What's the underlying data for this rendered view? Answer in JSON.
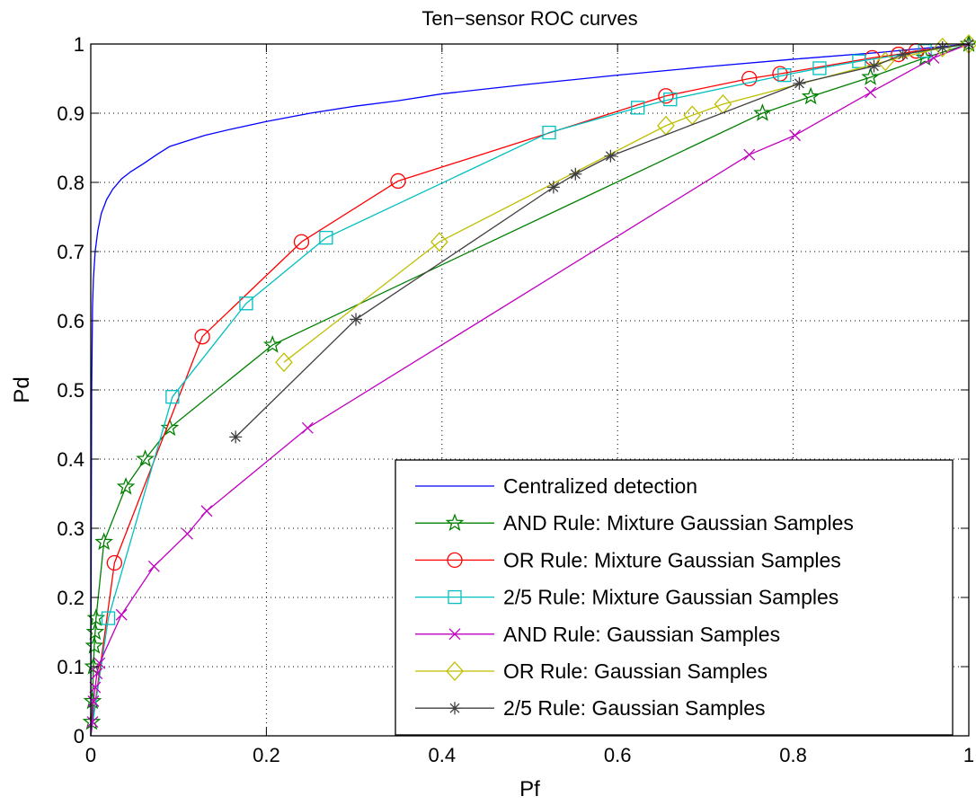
{
  "chart_data": {
    "type": "line",
    "title": "Ten−sensor ROC curves",
    "xlabel": "Pf",
    "ylabel": "Pd",
    "xlim": [
      0,
      1
    ],
    "ylim": [
      0,
      1
    ],
    "xticks": [
      0,
      0.2,
      0.4,
      0.6,
      0.8,
      1
    ],
    "xtick_labels": [
      "0",
      "0.2",
      "0.4",
      "0.6",
      "0.8",
      "1"
    ],
    "yticks": [
      0,
      0.1,
      0.2,
      0.3,
      0.4,
      0.5,
      0.6,
      0.7,
      0.8,
      0.9,
      1
    ],
    "ytick_labels": [
      "0",
      "0.1",
      "0.2",
      "0.3",
      "0.4",
      "0.5",
      "0.6",
      "0.7",
      "0.8",
      "0.9",
      "1"
    ],
    "grid": true,
    "legend_position": "bottom-right",
    "series": [
      {
        "name": "Centralized detection",
        "color": "#0000ff",
        "marker": "none",
        "points": [
          [
            0,
            0
          ],
          [
            0.001,
            0.5
          ],
          [
            0.002,
            0.62
          ],
          [
            0.003,
            0.66
          ],
          [
            0.005,
            0.7
          ],
          [
            0.008,
            0.73
          ],
          [
            0.012,
            0.755
          ],
          [
            0.018,
            0.775
          ],
          [
            0.025,
            0.79
          ],
          [
            0.035,
            0.805
          ],
          [
            0.045,
            0.815
          ],
          [
            0.06,
            0.827
          ],
          [
            0.075,
            0.84
          ],
          [
            0.09,
            0.852
          ],
          [
            0.11,
            0.86
          ],
          [
            0.13,
            0.868
          ],
          [
            0.16,
            0.877
          ],
          [
            0.2,
            0.888
          ],
          [
            0.25,
            0.9
          ],
          [
            0.3,
            0.91
          ],
          [
            0.35,
            0.918
          ],
          [
            0.4,
            0.928
          ],
          [
            0.5,
            0.942
          ],
          [
            0.6,
            0.955
          ],
          [
            0.7,
            0.967
          ],
          [
            0.8,
            0.978
          ],
          [
            0.9,
            0.988
          ],
          [
            1,
            1
          ]
        ]
      },
      {
        "name": "AND Rule: Mixture Gaussian Samples",
        "color": "#008000",
        "marker": "star5",
        "points": [
          [
            0,
            0
          ],
          [
            0.001,
            0.02
          ],
          [
            0.002,
            0.05
          ],
          [
            0.003,
            0.1
          ],
          [
            0.004,
            0.13
          ],
          [
            0.005,
            0.15
          ],
          [
            0.006,
            0.17
          ],
          [
            0.015,
            0.28
          ],
          [
            0.04,
            0.36
          ],
          [
            0.062,
            0.4
          ],
          [
            0.09,
            0.445
          ],
          [
            0.207,
            0.565
          ],
          [
            0.765,
            0.9
          ],
          [
            0.82,
            0.924
          ],
          [
            0.888,
            0.952
          ],
          [
            0.95,
            0.98
          ],
          [
            1,
            1
          ]
        ],
        "marker_points": [
          [
            0.001,
            0.02
          ],
          [
            0.002,
            0.05
          ],
          [
            0.003,
            0.1
          ],
          [
            0.004,
            0.13
          ],
          [
            0.005,
            0.15
          ],
          [
            0.006,
            0.17
          ],
          [
            0.015,
            0.28
          ],
          [
            0.04,
            0.36
          ],
          [
            0.062,
            0.4
          ],
          [
            0.09,
            0.445
          ],
          [
            0.207,
            0.565
          ],
          [
            0.765,
            0.9
          ],
          [
            0.82,
            0.924
          ],
          [
            0.888,
            0.952
          ],
          [
            0.95,
            0.98
          ],
          [
            1,
            1
          ]
        ]
      },
      {
        "name": "OR Rule: Mixture Gaussian Samples",
        "color": "#ff0000",
        "marker": "circle",
        "points": [
          [
            0,
            0
          ],
          [
            0.027,
            0.25
          ],
          [
            0.127,
            0.577
          ],
          [
            0.24,
            0.714
          ],
          [
            0.35,
            0.802
          ],
          [
            0.655,
            0.925
          ],
          [
            0.75,
            0.95
          ],
          [
            0.785,
            0.957
          ],
          [
            0.89,
            0.98
          ],
          [
            0.92,
            0.985
          ],
          [
            0.94,
            0.99
          ],
          [
            1,
            1
          ]
        ],
        "marker_points": [
          [
            0.027,
            0.25
          ],
          [
            0.127,
            0.577
          ],
          [
            0.24,
            0.714
          ],
          [
            0.35,
            0.802
          ],
          [
            0.655,
            0.925
          ],
          [
            0.75,
            0.95
          ],
          [
            0.785,
            0.957
          ],
          [
            0.89,
            0.98
          ],
          [
            0.92,
            0.985
          ],
          [
            0.94,
            0.99
          ]
        ]
      },
      {
        "name": "2/5 Rule: Mixture Gaussian Samples",
        "color": "#00bfbf",
        "marker": "square",
        "points": [
          [
            0,
            0
          ],
          [
            0.02,
            0.17
          ],
          [
            0.093,
            0.49
          ],
          [
            0.177,
            0.625
          ],
          [
            0.268,
            0.72
          ],
          [
            0.522,
            0.872
          ],
          [
            0.623,
            0.908
          ],
          [
            0.66,
            0.92
          ],
          [
            0.79,
            0.955
          ],
          [
            0.83,
            0.965
          ],
          [
            0.875,
            0.975
          ],
          [
            0.95,
            0.99
          ],
          [
            1,
            1
          ]
        ],
        "marker_points": [
          [
            0.02,
            0.17
          ],
          [
            0.093,
            0.49
          ],
          [
            0.177,
            0.625
          ],
          [
            0.268,
            0.72
          ],
          [
            0.522,
            0.872
          ],
          [
            0.623,
            0.908
          ],
          [
            0.66,
            0.92
          ],
          [
            0.79,
            0.955
          ],
          [
            0.83,
            0.965
          ],
          [
            0.875,
            0.975
          ],
          [
            0.95,
            0.99
          ]
        ]
      },
      {
        "name": "AND Rule: Gaussian Samples",
        "color": "#bf00bf",
        "marker": "x",
        "points": [
          [
            0,
            0
          ],
          [
            0.002,
            0.02
          ],
          [
            0.003,
            0.05
          ],
          [
            0.005,
            0.07
          ],
          [
            0.007,
            0.09
          ],
          [
            0.01,
            0.105
          ],
          [
            0.035,
            0.175
          ],
          [
            0.072,
            0.245
          ],
          [
            0.11,
            0.292
          ],
          [
            0.132,
            0.325
          ],
          [
            0.247,
            0.445
          ],
          [
            0.75,
            0.84
          ],
          [
            0.802,
            0.868
          ],
          [
            0.888,
            0.93
          ],
          [
            0.96,
            0.98
          ],
          [
            1,
            1
          ]
        ],
        "marker_points": [
          [
            0.002,
            0.02
          ],
          [
            0.003,
            0.05
          ],
          [
            0.005,
            0.07
          ],
          [
            0.007,
            0.09
          ],
          [
            0.01,
            0.105
          ],
          [
            0.035,
            0.175
          ],
          [
            0.072,
            0.245
          ],
          [
            0.11,
            0.292
          ],
          [
            0.132,
            0.325
          ],
          [
            0.247,
            0.445
          ],
          [
            0.75,
            0.84
          ],
          [
            0.802,
            0.868
          ],
          [
            0.888,
            0.93
          ],
          [
            0.96,
            0.98
          ]
        ]
      },
      {
        "name": "OR Rule: Gaussian Samples",
        "color": "#bfbf00",
        "marker": "diamond",
        "points": [
          [
            0.22,
            0.54
          ],
          [
            0.397,
            0.714
          ],
          [
            0.655,
            0.882
          ],
          [
            0.685,
            0.897
          ],
          [
            0.72,
            0.913
          ],
          [
            0.905,
            0.975
          ],
          [
            0.97,
            0.995
          ],
          [
            1,
            1
          ]
        ],
        "marker_points": [
          [
            0.22,
            0.54
          ],
          [
            0.397,
            0.714
          ],
          [
            0.655,
            0.882
          ],
          [
            0.685,
            0.897
          ],
          [
            0.72,
            0.913
          ],
          [
            0.905,
            0.975
          ],
          [
            0.97,
            0.995
          ],
          [
            1,
            1
          ]
        ]
      },
      {
        "name": "2/5 Rule: Gaussian Samples",
        "color": "#404040",
        "marker": "asterisk",
        "points": [
          [
            0.165,
            0.432
          ],
          [
            0.302,
            0.602
          ],
          [
            0.527,
            0.793
          ],
          [
            0.552,
            0.812
          ],
          [
            0.592,
            0.838
          ],
          [
            0.807,
            0.943
          ],
          [
            0.892,
            0.968
          ],
          [
            0.925,
            0.985
          ],
          [
            0.97,
            0.995
          ],
          [
            1,
            1
          ]
        ],
        "marker_points": [
          [
            0.165,
            0.432
          ],
          [
            0.302,
            0.602
          ],
          [
            0.527,
            0.793
          ],
          [
            0.552,
            0.812
          ],
          [
            0.592,
            0.838
          ],
          [
            0.807,
            0.943
          ],
          [
            0.892,
            0.968
          ],
          [
            0.925,
            0.985
          ],
          [
            0.97,
            0.995
          ],
          [
            1,
            1
          ]
        ]
      }
    ]
  }
}
